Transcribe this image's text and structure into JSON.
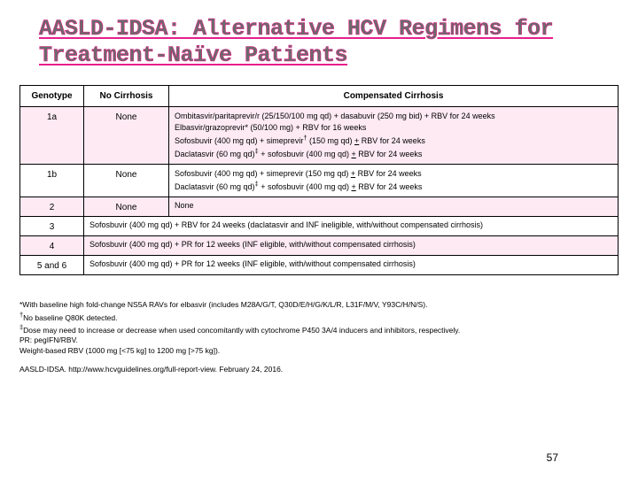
{
  "title": "AASLD-IDSA: Alternative HCV Regimens for Treatment-Naïve Patients",
  "columns": {
    "c1": "Genotype",
    "c2": "No Cirrhosis",
    "c3": "Compensated Cirrhosis"
  },
  "rows": {
    "r1": {
      "geno": "1a",
      "noc": "None",
      "comp_l1": "Ombitasvir/paritaprevir/r (25/150/100 mg qd) + dasabuvir (250 mg bid) + RBV for 24 weeks",
      "comp_l2": "Elbasvir/grazoprevir* (50/100 mg) + RBV for 16 weeks",
      "comp_l3a": "Sofosbuvir (400 mg qd) + simeprevir",
      "comp_l3sup": "†",
      "comp_l3b": " (150 mg qd) ",
      "comp_l3u": "+",
      "comp_l3c": " RBV for 24 weeks",
      "comp_l4a": "Daclatasvir (60 mg qd)",
      "comp_l4sup": "‡",
      "comp_l4b": " + sofosbuvir (400 mg qd) ",
      "comp_l4u": "+",
      "comp_l4c": " RBV for 24 weeks"
    },
    "r2": {
      "geno": "1b",
      "noc": "None",
      "comp_l1a": "Sofosbuvir (400 mg qd) + simeprevir (150 mg qd) ",
      "comp_l1u": "+",
      "comp_l1b": " RBV for 24 weeks",
      "comp_l2a": "Daclatasvir (60 mg qd)",
      "comp_l2sup": "‡",
      "comp_l2b": " + sofosbuvir (400 mg qd) ",
      "comp_l2u": "+",
      "comp_l2c": " RBV for 24 weeks"
    },
    "r3": {
      "geno": "2",
      "noc": "None",
      "comp": "None"
    },
    "r4": {
      "geno": "3",
      "span": "Sofosbuvir (400 mg qd) + RBV for 24 weeks (daclatasvir and INF ineligible, with/without compensated cirrhosis)"
    },
    "r5": {
      "geno": "4",
      "span": "Sofosbuvir (400 mg qd) + PR for 12 weeks (INF eligible, with/without compensated cirrhosis)"
    },
    "r6": {
      "geno": "5 and 6",
      "span": "Sofosbuvir (400 mg qd) + PR for 12 weeks (INF eligible, with/without compensated cirrhosis)"
    }
  },
  "footnotes": {
    "f1": "*With baseline high fold-change NS5A RAVs for elbasvir (includes M28A/G/T, Q30D/E/H/G/K/L/R, L31F/M/V, Y93C/H/N/S).",
    "f2a": "†",
    "f2b": "No baseline Q80K detected.",
    "f3a": "‡",
    "f3b": "Dose may need to increase or decrease when used concomitantly with cytochrome P450 3A/4 inducers and inhibitors, respectively.",
    "f4": "PR: pegIFN/RBV.",
    "f5": "Weight-based RBV (1000 mg [<75 kg] to 1200 mg [>75 kg])."
  },
  "cite": "AASLD-IDSA. http://www.hcvguidelines.org/full-report-view. February 24, 2016.",
  "pagenum": "57",
  "colors": {
    "title_stroke": "#e91e8c",
    "pink": "#fdeaf3"
  },
  "col_widths": {
    "c1": "72px",
    "c2": "96px"
  }
}
